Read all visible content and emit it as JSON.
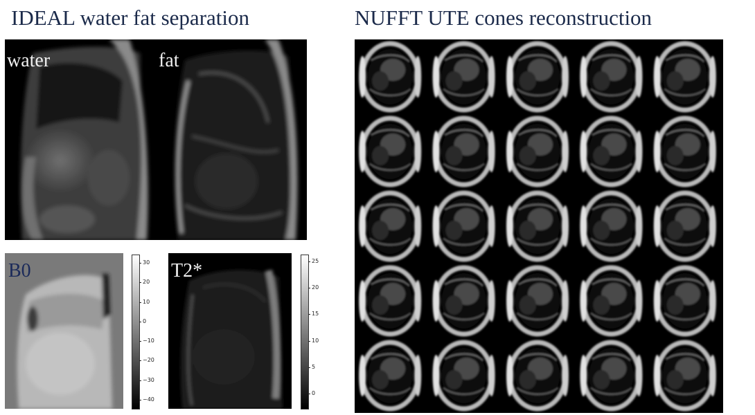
{
  "titles": {
    "left": "IDEAL water fat separation",
    "right": "NUFFT UTE cones reconstruction"
  },
  "labels": {
    "water": "water",
    "fat": "fat",
    "b0": "B0",
    "t2": "T2*"
  },
  "colorbars": {
    "b0": {
      "ticks": [
        "30",
        "20",
        "10",
        "0",
        "−10",
        "−20",
        "−30",
        "−40"
      ]
    },
    "t2": {
      "ticks": [
        "25",
        "20",
        "15",
        "10",
        "5",
        "0"
      ]
    }
  },
  "cones_grid": {
    "rows": 5,
    "cols": 5
  }
}
